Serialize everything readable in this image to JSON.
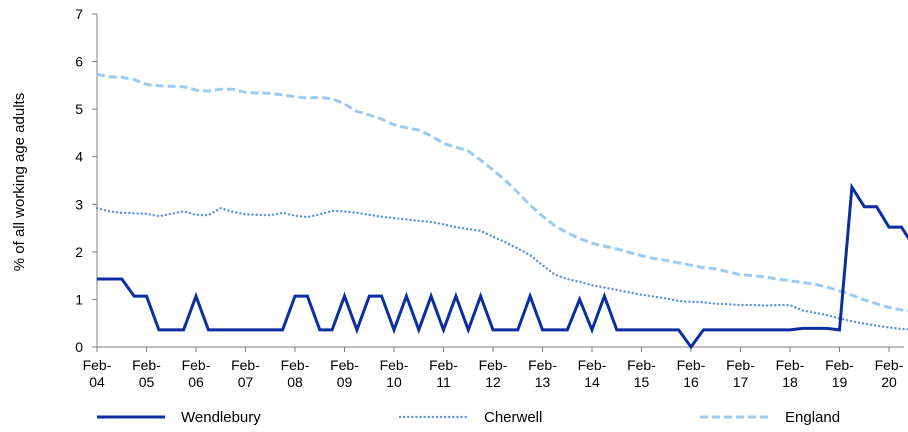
{
  "chart_data": {
    "type": "line",
    "ylabel": "% of all working age adults",
    "ylim": [
      0,
      7
    ],
    "yticks": [
      "0",
      "1",
      "2",
      "3",
      "4",
      "5",
      "6",
      "7"
    ],
    "xlim": [
      2004.0,
      2020.25
    ],
    "xticks": [
      {
        "x": 2004,
        "line1": "Feb-",
        "line2": "04"
      },
      {
        "x": 2005,
        "line1": "Feb-",
        "line2": "05"
      },
      {
        "x": 2006,
        "line1": "Feb-",
        "line2": "06"
      },
      {
        "x": 2007,
        "line1": "Feb-",
        "line2": "07"
      },
      {
        "x": 2008,
        "line1": "Feb-",
        "line2": "08"
      },
      {
        "x": 2009,
        "line1": "Feb-",
        "line2": "09"
      },
      {
        "x": 2010,
        "line1": "Feb-",
        "line2": "10"
      },
      {
        "x": 2011,
        "line1": "Feb-",
        "line2": "11"
      },
      {
        "x": 2012,
        "line1": "Feb-",
        "line2": "12"
      },
      {
        "x": 2013,
        "line1": "Feb-",
        "line2": "13"
      },
      {
        "x": 2014,
        "line1": "Feb-",
        "line2": "14"
      },
      {
        "x": 2015,
        "line1": "Feb-",
        "line2": "15"
      },
      {
        "x": 2016,
        "line1": "Feb-",
        "line2": "16"
      },
      {
        "x": 2017,
        "line1": "Feb-",
        "line2": "17"
      },
      {
        "x": 2018,
        "line1": "Feb-",
        "line2": "18"
      },
      {
        "x": 2019,
        "line1": "Feb-",
        "line2": "19"
      },
      {
        "x": 2020,
        "line1": "Feb-",
        "line2": "20"
      }
    ],
    "legend_position": "bottom",
    "series": [
      {
        "name": "Wendlebury",
        "color": "#0b2ea0",
        "style": "solid",
        "points": [
          [
            2004.0,
            1.43
          ],
          [
            2004.5,
            1.43
          ],
          [
            2004.75,
            1.07
          ],
          [
            2005.0,
            1.07
          ],
          [
            2005.25,
            0.36
          ],
          [
            2005.75,
            0.36
          ],
          [
            2006.0,
            1.07
          ],
          [
            2006.25,
            0.36
          ],
          [
            2007.75,
            0.36
          ],
          [
            2008.0,
            1.07
          ],
          [
            2008.25,
            1.07
          ],
          [
            2008.5,
            0.36
          ],
          [
            2008.75,
            0.36
          ],
          [
            2009.0,
            1.07
          ],
          [
            2009.25,
            0.36
          ],
          [
            2009.5,
            1.07
          ],
          [
            2009.75,
            1.07
          ],
          [
            2010.0,
            0.36
          ],
          [
            2010.25,
            1.07
          ],
          [
            2010.5,
            0.36
          ],
          [
            2010.75,
            1.07
          ],
          [
            2011.0,
            0.36
          ],
          [
            2011.25,
            1.07
          ],
          [
            2011.5,
            0.36
          ],
          [
            2011.75,
            1.07
          ],
          [
            2012.0,
            0.36
          ],
          [
            2012.5,
            0.36
          ],
          [
            2012.75,
            1.07
          ],
          [
            2013.0,
            0.36
          ],
          [
            2013.5,
            0.36
          ],
          [
            2013.75,
            1.0
          ],
          [
            2014.0,
            0.36
          ],
          [
            2014.25,
            1.07
          ],
          [
            2014.5,
            0.36
          ],
          [
            2015.75,
            0.36
          ],
          [
            2016.0,
            0.0
          ],
          [
            2016.25,
            0.36
          ],
          [
            2018.0,
            0.36
          ],
          [
            2018.25,
            0.39
          ],
          [
            2018.75,
            0.39
          ],
          [
            2019.0,
            0.36
          ],
          [
            2019.25,
            3.36
          ],
          [
            2019.5,
            2.95
          ],
          [
            2019.75,
            2.95
          ],
          [
            2020.0,
            2.52
          ],
          [
            2020.25,
            2.52
          ],
          [
            2020.5,
            2.12
          ]
        ]
      },
      {
        "name": "Cherwell",
        "color": "#5d93df",
        "style": "dotted",
        "points": [
          [
            2004.0,
            2.92
          ],
          [
            2004.25,
            2.85
          ],
          [
            2004.5,
            2.82
          ],
          [
            2004.75,
            2.81
          ],
          [
            2005.0,
            2.8
          ],
          [
            2005.25,
            2.75
          ],
          [
            2005.5,
            2.8
          ],
          [
            2005.75,
            2.85
          ],
          [
            2006.0,
            2.78
          ],
          [
            2006.25,
            2.77
          ],
          [
            2006.5,
            2.92
          ],
          [
            2006.75,
            2.84
          ],
          [
            2007.0,
            2.79
          ],
          [
            2007.25,
            2.78
          ],
          [
            2007.5,
            2.77
          ],
          [
            2007.75,
            2.82
          ],
          [
            2008.0,
            2.76
          ],
          [
            2008.25,
            2.73
          ],
          [
            2008.5,
            2.79
          ],
          [
            2008.75,
            2.86
          ],
          [
            2009.0,
            2.85
          ],
          [
            2009.25,
            2.82
          ],
          [
            2009.5,
            2.78
          ],
          [
            2009.75,
            2.74
          ],
          [
            2010.0,
            2.71
          ],
          [
            2010.25,
            2.68
          ],
          [
            2010.5,
            2.65
          ],
          [
            2010.75,
            2.63
          ],
          [
            2011.0,
            2.58
          ],
          [
            2011.25,
            2.52
          ],
          [
            2011.5,
            2.48
          ],
          [
            2011.75,
            2.44
          ],
          [
            2012.0,
            2.32
          ],
          [
            2012.25,
            2.2
          ],
          [
            2012.5,
            2.07
          ],
          [
            2012.75,
            1.93
          ],
          [
            2013.0,
            1.72
          ],
          [
            2013.25,
            1.52
          ],
          [
            2013.5,
            1.43
          ],
          [
            2013.75,
            1.37
          ],
          [
            2014.0,
            1.3
          ],
          [
            2014.25,
            1.25
          ],
          [
            2014.5,
            1.2
          ],
          [
            2014.75,
            1.15
          ],
          [
            2015.0,
            1.1
          ],
          [
            2015.25,
            1.06
          ],
          [
            2015.5,
            1.02
          ],
          [
            2015.75,
            0.97
          ],
          [
            2016.0,
            0.95
          ],
          [
            2016.25,
            0.94
          ],
          [
            2016.5,
            0.91
          ],
          [
            2016.75,
            0.9
          ],
          [
            2017.0,
            0.88
          ],
          [
            2017.25,
            0.88
          ],
          [
            2017.5,
            0.87
          ],
          [
            2017.75,
            0.88
          ],
          [
            2018.0,
            0.88
          ],
          [
            2018.25,
            0.77
          ],
          [
            2018.5,
            0.72
          ],
          [
            2018.75,
            0.67
          ],
          [
            2019.0,
            0.6
          ],
          [
            2019.25,
            0.54
          ],
          [
            2019.5,
            0.49
          ],
          [
            2019.75,
            0.45
          ],
          [
            2020.0,
            0.41
          ],
          [
            2020.25,
            0.38
          ],
          [
            2020.5,
            0.37
          ]
        ]
      },
      {
        "name": "England",
        "color": "#9ccbf2",
        "style": "dashed",
        "points": [
          [
            2004.0,
            5.73
          ],
          [
            2004.25,
            5.68
          ],
          [
            2004.5,
            5.67
          ],
          [
            2004.75,
            5.62
          ],
          [
            2005.0,
            5.52
          ],
          [
            2005.25,
            5.49
          ],
          [
            2005.5,
            5.48
          ],
          [
            2005.75,
            5.47
          ],
          [
            2006.0,
            5.4
          ],
          [
            2006.25,
            5.38
          ],
          [
            2006.5,
            5.42
          ],
          [
            2006.75,
            5.42
          ],
          [
            2007.0,
            5.35
          ],
          [
            2007.25,
            5.34
          ],
          [
            2007.5,
            5.33
          ],
          [
            2007.75,
            5.3
          ],
          [
            2008.0,
            5.26
          ],
          [
            2008.25,
            5.23
          ],
          [
            2008.5,
            5.25
          ],
          [
            2008.75,
            5.22
          ],
          [
            2009.0,
            5.11
          ],
          [
            2009.25,
            4.95
          ],
          [
            2009.5,
            4.88
          ],
          [
            2009.75,
            4.79
          ],
          [
            2010.0,
            4.67
          ],
          [
            2010.25,
            4.61
          ],
          [
            2010.5,
            4.56
          ],
          [
            2010.75,
            4.44
          ],
          [
            2011.0,
            4.28
          ],
          [
            2011.25,
            4.2
          ],
          [
            2011.5,
            4.12
          ],
          [
            2011.75,
            3.93
          ],
          [
            2012.0,
            3.72
          ],
          [
            2012.25,
            3.5
          ],
          [
            2012.5,
            3.25
          ],
          [
            2012.75,
            2.98
          ],
          [
            2013.0,
            2.75
          ],
          [
            2013.25,
            2.55
          ],
          [
            2013.5,
            2.4
          ],
          [
            2013.75,
            2.28
          ],
          [
            2014.0,
            2.18
          ],
          [
            2014.25,
            2.12
          ],
          [
            2014.5,
            2.06
          ],
          [
            2014.75,
            1.99
          ],
          [
            2015.0,
            1.92
          ],
          [
            2015.25,
            1.86
          ],
          [
            2015.5,
            1.82
          ],
          [
            2015.75,
            1.77
          ],
          [
            2016.0,
            1.72
          ],
          [
            2016.25,
            1.67
          ],
          [
            2016.5,
            1.64
          ],
          [
            2016.75,
            1.58
          ],
          [
            2017.0,
            1.52
          ],
          [
            2017.25,
            1.5
          ],
          [
            2017.5,
            1.47
          ],
          [
            2017.75,
            1.43
          ],
          [
            2018.0,
            1.39
          ],
          [
            2018.25,
            1.36
          ],
          [
            2018.5,
            1.32
          ],
          [
            2018.75,
            1.26
          ],
          [
            2019.0,
            1.18
          ],
          [
            2019.25,
            1.09
          ],
          [
            2019.5,
            0.99
          ],
          [
            2019.75,
            0.91
          ],
          [
            2020.0,
            0.83
          ],
          [
            2020.25,
            0.78
          ],
          [
            2020.5,
            0.74
          ]
        ]
      }
    ]
  }
}
